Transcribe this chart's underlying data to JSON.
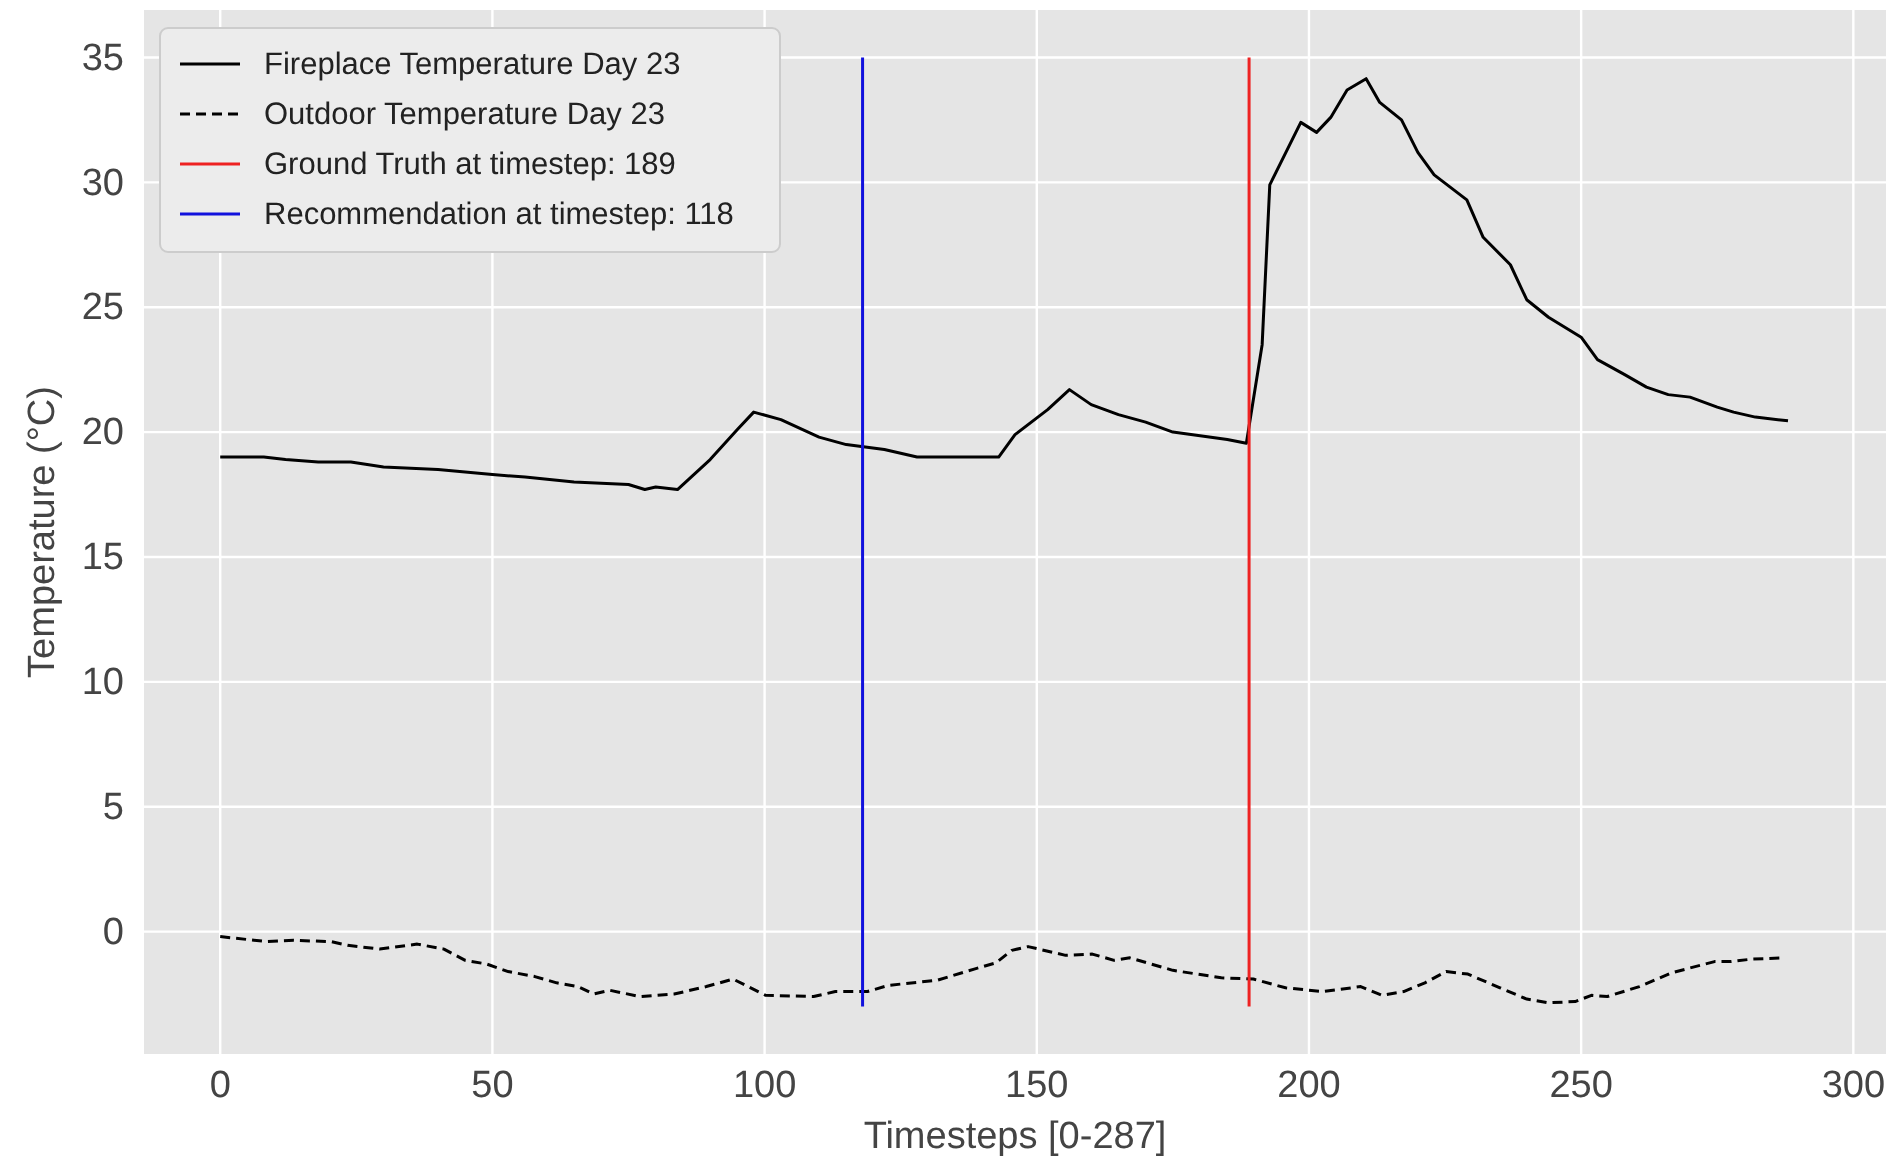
{
  "chart_data": {
    "type": "line",
    "xlabel": "Timesteps [0-287]",
    "ylabel": "Temperature (°C)",
    "xlim": [
      -14,
      306
    ],
    "ylim": [
      -4.9,
      36.9
    ],
    "xticks": [
      0,
      50,
      100,
      150,
      200,
      250,
      300
    ],
    "yticks": [
      0,
      5,
      10,
      15,
      20,
      25,
      30,
      35
    ],
    "grid": true,
    "legend": "top left",
    "series": [
      {
        "name": "Fireplace Temperature Day 23",
        "color": "#000000",
        "line_style": "solid",
        "x": [
          0,
          8,
          12,
          18,
          24,
          30,
          40,
          50,
          56,
          65,
          75,
          78,
          80,
          84,
          90,
          95,
          98,
          103,
          110,
          115,
          122,
          128,
          135,
          143,
          146,
          152,
          156,
          160,
          165,
          170,
          175,
          185,
          188.5,
          191.4,
          192.8,
          198.5,
          201.4,
          204,
          207,
          210.5,
          213,
          217,
          220,
          223,
          229,
          232,
          237,
          240,
          244,
          250,
          253,
          258,
          262,
          266,
          270,
          275,
          278,
          282,
          288
        ],
        "values": [
          19.0,
          19.0,
          18.9,
          18.8,
          18.8,
          18.6,
          18.5,
          18.3,
          18.2,
          18.0,
          17.9,
          17.7,
          17.8,
          17.7,
          18.9,
          20.1,
          20.8,
          20.5,
          19.8,
          19.5,
          19.3,
          19.0,
          19.0,
          19.0,
          19.9,
          20.9,
          21.7,
          21.1,
          20.7,
          20.4,
          20.0,
          19.7,
          19.55,
          23.5,
          29.9,
          32.4,
          32.0,
          32.6,
          33.7,
          34.15,
          33.2,
          32.5,
          31.2,
          30.3,
          29.3,
          27.8,
          26.7,
          25.3,
          24.6,
          23.8,
          22.9,
          22.3,
          21.8,
          21.5,
          21.4,
          21.0,
          20.8,
          20.6,
          20.45
        ]
      },
      {
        "name": "Outdoor Temperature Day 23",
        "color": "#000000",
        "line_style": "dashed",
        "x": [
          0,
          8.6,
          13.5,
          20.4,
          23.4,
          29.3,
          36.2,
          41.1,
          45,
          49,
          52.9,
          57.8,
          61.8,
          65.7,
          68.6,
          71.6,
          77.1,
          83.4,
          89.3,
          94.2,
          100.2,
          109,
          113,
          118.9,
          122.8,
          131.7,
          138.5,
          142.5,
          145.4,
          148.4,
          155.3,
          160.2,
          164.2,
          167.1,
          175,
          183.9,
          189.8,
          195.7,
          202.6,
          209.5,
          213.4,
          217.4,
          221.3,
          225.2,
          229.2,
          235.1,
          240,
          244,
          248.9,
          251.9,
          254.8,
          260.7,
          266.6,
          274.5,
          277.4,
          281.4,
          287.3
        ],
        "values": [
          -0.2,
          -0.4,
          -0.35,
          -0.4,
          -0.55,
          -0.7,
          -0.5,
          -0.7,
          -1.15,
          -1.3,
          -1.6,
          -1.8,
          -2.05,
          -2.2,
          -2.5,
          -2.35,
          -2.6,
          -2.5,
          -2.2,
          -1.9,
          -2.55,
          -2.6,
          -2.4,
          -2.4,
          -2.15,
          -1.95,
          -1.5,
          -1.25,
          -0.75,
          -0.6,
          -0.95,
          -0.9,
          -1.15,
          -1.05,
          -1.55,
          -1.85,
          -1.9,
          -2.25,
          -2.4,
          -2.2,
          -2.55,
          -2.4,
          -2.05,
          -1.6,
          -1.7,
          -2.25,
          -2.7,
          -2.85,
          -2.8,
          -2.55,
          -2.6,
          -2.2,
          -1.65,
          -1.2,
          -1.2,
          -1.1,
          -1.05
        ]
      },
      {
        "name": "Ground Truth at timestep: 189",
        "color": "#ee2222",
        "line_style": "solid",
        "x": [
          189,
          189
        ],
        "values": [
          -3,
          35
        ]
      },
      {
        "name": "Recommendation at timestep: 118",
        "color": "#1111dd",
        "line_style": "solid",
        "x": [
          118,
          118
        ],
        "values": [
          -3,
          35
        ]
      }
    ]
  }
}
